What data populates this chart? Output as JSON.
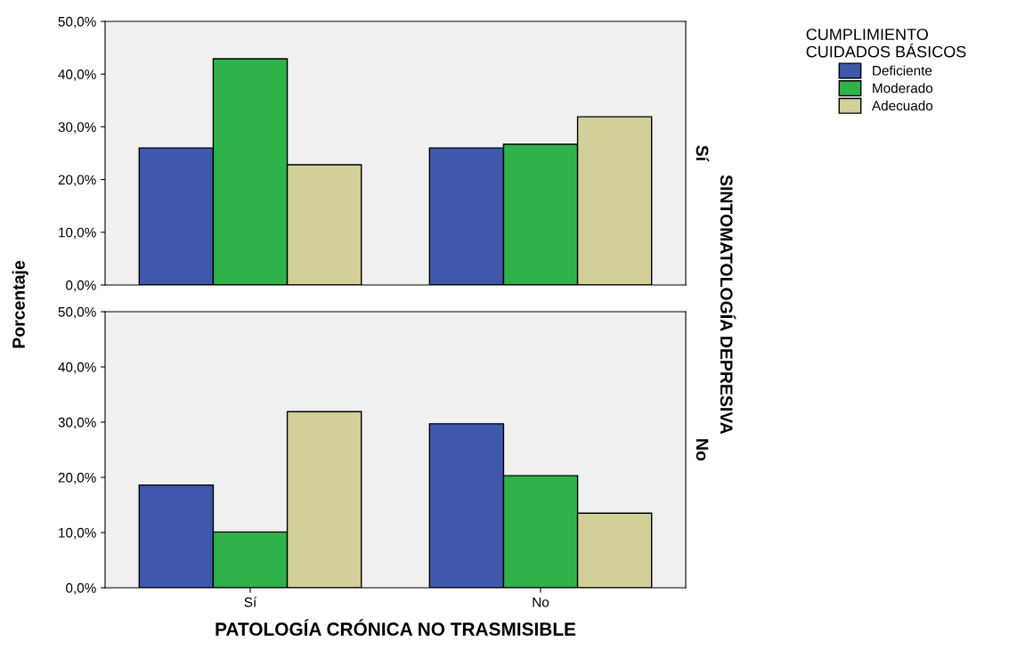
{
  "chart_data": [
    {
      "type": "bar",
      "categories": [
        null,
        null
      ],
      "ylabel": "Porcentaje",
      "y2label": "SINTOMATOLOGÍA DEPRESIVA",
      "annotations": [
        "Sí"
      ],
      "legend_title": "CUMPLIMIENTO\nCUIDADOS BÁSICOS",
      "legend": "top right",
      "tick_labels": "y",
      "ylim": [
        0,
        50
      ],
      "yticks": [
        {
          "value": 0,
          "label": "0,0%"
        },
        {
          "value": 10,
          "label": "10,0%"
        },
        {
          "value": 20,
          "label": "20,0%"
        },
        {
          "value": 30,
          "label": "30,0%"
        },
        {
          "value": 40,
          "label": "40,0%"
        },
        {
          "value": 50,
          "label": "50,0%"
        }
      ],
      "series": [
        {
          "name": "Deficiente",
          "color": "#3e58ab",
          "values": [
            26.0,
            26.0
          ]
        },
        {
          "name": "Moderado",
          "color": "#2db34a",
          "values": [
            42.9,
            26.7
          ]
        },
        {
          "name": "Adecuado",
          "color": "#d3cf98",
          "values": [
            22.8,
            31.9
          ]
        }
      ]
    },
    {
      "type": "bar",
      "categories": [
        "Sí",
        "No"
      ],
      "xlabel": "PATOLOGÍA CRÓNICA NO TRASMISIBLE",
      "annotations": [
        "No"
      ],
      "ylim": [
        0,
        50
      ],
      "yticks": [
        {
          "value": 0,
          "label": "0,0%"
        },
        {
          "value": 10,
          "label": "10,0%"
        },
        {
          "value": 20,
          "label": "20,0%"
        },
        {
          "value": 30,
          "label": "30,0%"
        },
        {
          "value": 40,
          "label": "40,0%"
        },
        {
          "value": 50,
          "label": "50,0%"
        }
      ],
      "series": [
        {
          "color": "#3e58ab",
          "values": [
            18.6,
            29.7
          ]
        },
        {
          "color": "#2db34a",
          "values": [
            10.1,
            20.3
          ]
        },
        {
          "color": "#d3cf98",
          "values": [
            31.9,
            13.5
          ]
        }
      ]
    }
  ]
}
